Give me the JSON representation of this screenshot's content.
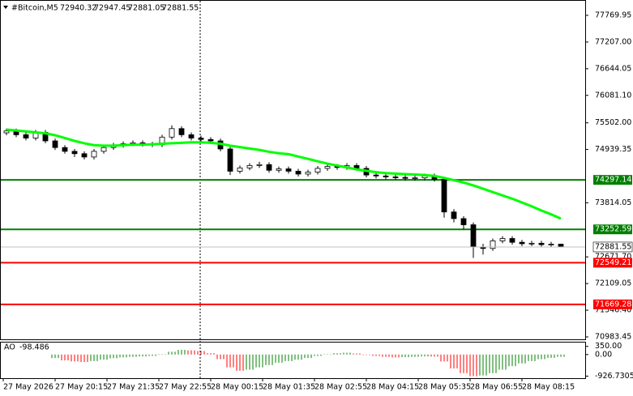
{
  "chart_data": [
    {
      "type": "candlestick",
      "title": "#Bitcoin,M5",
      "open": [
        75290,
        75330,
        75250,
        75180,
        75300,
        75120,
        74980,
        74900,
        74850,
        74780,
        74900,
        74980,
        75030,
        75060,
        75080,
        75050,
        75040,
        75200,
        75380,
        75250,
        75180,
        75150,
        75120,
        74950,
        74480,
        74550,
        74600,
        74620,
        74500,
        74530,
        74480,
        74420,
        74460,
        74540,
        74580,
        74560,
        74600,
        74540,
        74400,
        74380,
        74360,
        74350,
        74330,
        74340,
        74380,
        74310,
        73620,
        73480,
        73350,
        72880,
        72850,
        73010,
        73060,
        72980,
        72950,
        72960,
        72930,
        72940.32
      ],
      "high": [
        75380,
        75380,
        75300,
        75350,
        75350,
        75170,
        75030,
        74950,
        74900,
        74950,
        75030,
        75080,
        75110,
        75130,
        75130,
        75100,
        75250,
        75450,
        75430,
        75300,
        75230,
        75200,
        75170,
        75000,
        74600,
        74650,
        74680,
        74670,
        74580,
        74580,
        74530,
        74510,
        74590,
        74630,
        74630,
        74650,
        74650,
        74590,
        74450,
        74430,
        74410,
        74400,
        74390,
        74430,
        74430,
        74360,
        73680,
        73530,
        73400,
        72950,
        73060,
        73110,
        73110,
        73030,
        73010,
        73010,
        72990,
        72947.45
      ],
      "low": [
        75240,
        75200,
        75130,
        75130,
        75070,
        74930,
        74850,
        74780,
        74730,
        74730,
        74850,
        74930,
        74980,
        75010,
        75000,
        74990,
        74990,
        75150,
        75200,
        75130,
        75100,
        75070,
        74900,
        74400,
        74430,
        74500,
        74550,
        74450,
        74450,
        74430,
        74370,
        74370,
        74410,
        74490,
        74510,
        74510,
        74490,
        74350,
        74330,
        74310,
        74300,
        74280,
        74280,
        74290,
        74260,
        73500,
        73400,
        73250,
        72650,
        72720,
        72800,
        72960,
        72930,
        72900,
        72900,
        72880,
        72880,
        72881.05
      ],
      "close": [
        75330,
        75250,
        75180,
        75300,
        75120,
        74980,
        74900,
        74850,
        74780,
        74900,
        74980,
        75030,
        75060,
        75080,
        75050,
        75040,
        75200,
        75380,
        75250,
        75180,
        75150,
        75120,
        74950,
        74480,
        74550,
        74600,
        74620,
        74500,
        74530,
        74480,
        74420,
        74460,
        74540,
        74580,
        74560,
        74600,
        74540,
        74400,
        74380,
        74360,
        74350,
        74330,
        74340,
        74380,
        74310,
        73620,
        73480,
        73350,
        72880,
        72850,
        73010,
        73060,
        72980,
        72950,
        72960,
        72930,
        72940,
        72881.55
      ],
      "ma": {
        "color": "#00ff00",
        "values": [
          75360,
          75340,
          75320,
          75300,
          75280,
          75240,
          75180,
          75120,
          75070,
          75030,
          75020,
          75020,
          75030,
          75040,
          75040,
          75050,
          75060,
          75070,
          75080,
          75090,
          75090,
          75080,
          75060,
          75020,
          74990,
          74960,
          74930,
          74890,
          74860,
          74840,
          74790,
          74740,
          74690,
          74640,
          74600,
          74560,
          74520,
          74490,
          74460,
          74440,
          74430,
          74420,
          74410,
          74400,
          74380,
          74340,
          74290,
          74240,
          74180,
          74110,
          74040,
          73970,
          73900,
          73820,
          73740,
          73650,
          73570,
          73480
        ]
      },
      "levels": [
        {
          "value": 74297.14,
          "color": "#008000"
        },
        {
          "value": 73252.59,
          "color": "#008000"
        },
        {
          "value": 72549.21,
          "color": "#ff0000"
        },
        {
          "value": 71669.28,
          "color": "#ff0000"
        }
      ],
      "ylim": [
        70915,
        78060
      ],
      "yticks": [
        77769.95,
        {
          "value": 77207,
          "label": "77207.00"
        },
        76644.05,
        {
          "value": 76081.1,
          "label": "76081.10"
        },
        {
          "value": 75502,
          "label": "75502.00"
        },
        74939.35,
        73814.05,
        {
          "value": 72671.7,
          "label": "72671.70"
        },
        72109.05,
        {
          "value": 71546.4,
          "label": "71546.40"
        },
        70983.45
      ],
      "x_labels": [
        "27 May 2026",
        "27 May 20:15",
        "27 May 21:35",
        "27 May 22:55",
        "28 May 00:15",
        "28 May 01:35",
        "28 May 02:55",
        "28 May 04:15",
        "28 May 05:35",
        "28 May 06:55",
        "28 May 08:15"
      ]
    },
    {
      "type": "bar",
      "title": "AO",
      "up_color": "#008000",
      "down_color": "#ff0000",
      "values": [
        null,
        null,
        null,
        null,
        null,
        -150,
        -250,
        -300,
        -320,
        -280,
        -220,
        -160,
        -120,
        -100,
        -80,
        -60,
        20,
        120,
        200,
        180,
        150,
        60,
        -200,
        -550,
        -700,
        -650,
        -550,
        -450,
        -350,
        -280,
        -220,
        -150,
        -60,
        20,
        60,
        80,
        50,
        -20,
        -60,
        -100,
        -120,
        -110,
        -100,
        -80,
        -90,
        -300,
        -600,
        -800,
        -926.73,
        -900,
        -800,
        -650,
        -500,
        -380,
        -280,
        -200,
        -140,
        -98.486
      ],
      "ylim": [
        -1050,
        480
      ],
      "yticks": [
        {
          "value": 350,
          "label": "350.00"
        },
        {
          "value": 0,
          "label": "0.00"
        },
        -926.7305
      ]
    }
  ]
}
